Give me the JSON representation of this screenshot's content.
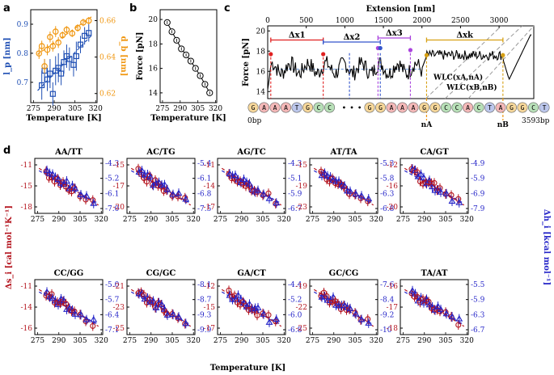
{
  "panel_labels": {
    "a": "a",
    "b": "b",
    "c": "c",
    "d": "d"
  },
  "colors": {
    "blue": "#1f4fb4",
    "orange": "#f0960f",
    "red": "#b4141e",
    "navy": "#2424c8",
    "purple": "#b44bd2",
    "darkyellow": "#d7a014",
    "gray": "#999999"
  },
  "chart_data": [
    {
      "id": "a",
      "type": "scatter",
      "xlabel": "Temperature [K]",
      "ylabel_left": "l_p [nm]",
      "ylabel_right": "d_b [nm]",
      "xticks": [
        "275",
        "290",
        "305",
        "320"
      ],
      "yticks_left": [
        "0.7",
        "0.8",
        "0.9"
      ],
      "yticks_right": [
        "0.62",
        "0.64",
        "0.66"
      ],
      "xlim": [
        273,
        321
      ],
      "ylim_left": [
        0.63,
        0.95
      ],
      "ylim_right": [
        0.615,
        0.666
      ],
      "series": [
        {
          "name": "l_p",
          "axis": "left",
          "marker": "square",
          "x": [
            281,
            283,
            285,
            287,
            289,
            291,
            293,
            295,
            297,
            299,
            301,
            304,
            306,
            309,
            312,
            315
          ],
          "y": [
            0.69,
            0.74,
            0.71,
            0.73,
            0.66,
            0.74,
            0.75,
            0.73,
            0.77,
            0.79,
            0.78,
            0.76,
            0.79,
            0.83,
            0.86,
            0.87
          ],
          "err": [
            0.05,
            0.04,
            0.04,
            0.05,
            0.04,
            0.05,
            0.05,
            0.04,
            0.04,
            0.04,
            0.04,
            0.04,
            0.05,
            0.03,
            0.03,
            0.03
          ]
        },
        {
          "name": "d_b",
          "axis": "right",
          "marker": "circle",
          "x": [
            279,
            281,
            283,
            285,
            287,
            289,
            291,
            293,
            296,
            299,
            303,
            307,
            311,
            315
          ],
          "y": [
            0.642,
            0.646,
            0.635,
            0.644,
            0.651,
            0.646,
            0.654,
            0.648,
            0.652,
            0.655,
            0.653,
            0.656,
            0.659,
            0.66
          ],
          "err": [
            0.003,
            0.003,
            0.004,
            0.003,
            0.003,
            0.003,
            0.003,
            0.003,
            0.002,
            0.002,
            0.002,
            0.002,
            0.002,
            0.002
          ]
        }
      ]
    },
    {
      "id": "b",
      "type": "scatter",
      "xlabel": "Temperature [K]",
      "ylabel": "Force [pN]",
      "xticks": [
        "275",
        "290",
        "305",
        "320"
      ],
      "yticks": [
        "14",
        "16",
        "18",
        "20"
      ],
      "xlim": [
        273,
        321
      ],
      "ylim": [
        13.2,
        20.8
      ],
      "x": [
        279,
        283,
        287,
        291,
        295,
        299,
        303,
        307,
        311,
        315
      ],
      "y": [
        19.75,
        19.0,
        18.3,
        17.6,
        17.1,
        16.6,
        16.0,
        15.4,
        14.7,
        14.0
      ]
    },
    {
      "id": "c",
      "type": "line",
      "xlabel_top": "Extension [nm]",
      "ylabel": "Force [pN]",
      "xticks": [
        "0",
        "500",
        "1000",
        "1500",
        "2000",
        "2500",
        "3000"
      ],
      "xlim": [
        0,
        3450
      ],
      "yticks": [
        "14",
        "16",
        "18",
        "20"
      ],
      "ylim": [
        13.3,
        20.5
      ],
      "annotations": {
        "dx1": "Δx1",
        "dx2": "Δx2",
        "dx3": "Δx3",
        "dxk": "Δxk",
        "wlc_a": "WLC(xA,nA)",
        "wlc_b": "WLC(xB,nB)",
        "start_bp": "0bp",
        "end_bp": "3593bp",
        "na": "nA",
        "nb": "nB",
        "ellipsis": "• • •"
      },
      "sequence_left": [
        "G",
        "A",
        "A",
        "A",
        "T",
        "G",
        "C",
        "C"
      ],
      "sequence_right": [
        "G",
        "G",
        "A",
        "A",
        "A",
        "G",
        "G",
        "C",
        "C",
        "A",
        "C",
        "T",
        "A",
        "G",
        "G",
        "C",
        "T"
      ],
      "base_colors": {
        "A": "#f4b8b8",
        "T": "#bcc7ec",
        "G": "#f6d79a",
        "C": "#b8e0b8"
      }
    },
    {
      "id": "d",
      "type": "scatter_grid",
      "xlabel": "Temperature [K]",
      "ylabel_left": "Δs_i [cal mol⁻¹K⁻¹]",
      "ylabel_right": "Δh_i [kcal mol⁻¹]",
      "xticks": [
        "275",
        "290",
        "305",
        "320"
      ],
      "panels": [
        {
          "title": "AA/TT",
          "yl": [
            "-11",
            "-15",
            "-18"
          ],
          "yr": [
            "-4.3",
            "-5.2",
            "-6.1",
            "-7.0"
          ]
        },
        {
          "title": "AC/TG",
          "yl": [
            "-15",
            "-17",
            "-20"
          ],
          "yr": [
            "-5.4",
            "-6.1",
            "-6.8",
            "-7.5"
          ]
        },
        {
          "title": "AG/TC",
          "yl": [
            "-11",
            "-14",
            "-17"
          ],
          "yr": [
            "-4.3",
            "-5.1",
            "-5.9",
            "-6.7"
          ]
        },
        {
          "title": "AT/TA",
          "yl": [
            "-15",
            "-19",
            "-23"
          ],
          "yr": [
            "-5.3",
            "-5.8",
            "-6.3",
            "-6.8"
          ]
        },
        {
          "title": "CA/GT",
          "yl": [
            "-12",
            "-16",
            "-20"
          ],
          "yr": [
            "-4.9",
            "-5.9",
            "-6.9",
            "-7.9"
          ]
        },
        {
          "title": "CC/GG",
          "yl": [
            "-11",
            "-14",
            "-16"
          ],
          "yr": [
            "-5.0",
            "-5.7",
            "-6.4",
            "-7.1"
          ]
        },
        {
          "title": "CG/GC",
          "yl": [
            "-21",
            "-23",
            "-25"
          ],
          "yr": [
            "-8.1",
            "-8.7",
            "-9.3",
            "-9.9"
          ]
        },
        {
          "title": "GA/CT",
          "yl": [
            "-12",
            "-15",
            "-17"
          ],
          "yr": [
            "-4.4",
            "-5.2",
            "-6.0",
            "-6.8"
          ]
        },
        {
          "title": "GC/CG",
          "yl": [
            "-19",
            "-22",
            "-25"
          ],
          "yr": [
            "-7.6",
            "-8.4",
            "-9.2",
            "-10"
          ]
        },
        {
          "title": "TA/AT",
          "yl": [
            "-16",
            "-17",
            "-18"
          ],
          "yr": [
            "-5.5",
            "-5.9",
            "-6.3",
            "-6.7"
          ]
        }
      ]
    }
  ]
}
